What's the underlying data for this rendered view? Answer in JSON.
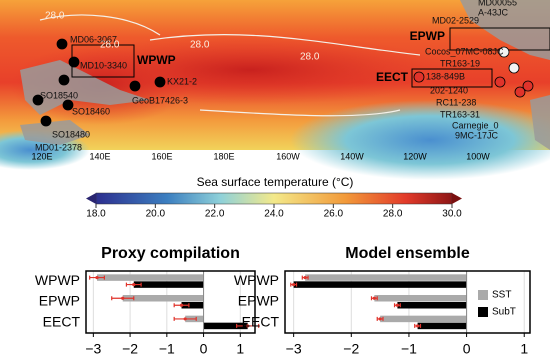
{
  "map": {
    "lon_labels": [
      "120E",
      "140E",
      "160E",
      "180E",
      "160W",
      "140W",
      "120W",
      "100W"
    ],
    "contour_labels": [
      "28.0",
      "28.0",
      "28.0",
      "28.0"
    ],
    "regions": [
      "WPWP",
      "EPWP",
      "EECT"
    ],
    "sites": [
      "MD06-3067",
      "MD10-3340",
      "KX21-2",
      "GeoB17426-3",
      "SO18540",
      "SO18460",
      "SO18480",
      "MD01-2378",
      "MD00055",
      "A-43JC",
      "MD02-2529",
      "Cocos_07MC-08JC",
      "TR163-19",
      "138-849B",
      "202-1240",
      "RC11-238",
      "TR163-31",
      "Carnegie_0",
      "9MC-17JC"
    ]
  },
  "colorbar": {
    "title": "Sea surface temperature (°C)",
    "lim": [
      18,
      30
    ],
    "ticks": [
      {
        "value": 18,
        "label": "18.0"
      },
      {
        "value": 20,
        "label": "20.0"
      },
      {
        "value": 22,
        "label": "22.0"
      },
      {
        "value": 24,
        "label": "24.0"
      },
      {
        "value": 26,
        "label": "26.0"
      },
      {
        "value": 28,
        "label": "28.0"
      },
      {
        "value": 30,
        "label": "30.0"
      }
    ]
  },
  "chart_data": [
    {
      "type": "hbar",
      "title": "Proxy compilation",
      "categories": [
        "WPWP",
        "EPWP",
        "EECT"
      ],
      "series": [
        {
          "name": "SST",
          "color": "#aaaaaa",
          "values": [
            -2.9,
            -2.2,
            -0.5
          ],
          "errors": [
            0.2,
            0.3,
            0.3
          ]
        },
        {
          "name": "SubT",
          "color": "#000000",
          "values": [
            -1.9,
            -0.6,
            1.2
          ],
          "errors": [
            0.2,
            0.2,
            0.3
          ]
        }
      ],
      "xlim": [
        -3.2,
        1.4
      ],
      "grid": true,
      "xticks": [
        {
          "value": -3,
          "label": "−3"
        },
        {
          "value": -2,
          "label": "−2"
        },
        {
          "value": -1,
          "label": "−1"
        },
        0,
        1
      ],
      "error_color": "#e0332b"
    },
    {
      "type": "hbar",
      "title": "Model ensemble",
      "categories": [
        "WPWP",
        "EPWP",
        "EECT"
      ],
      "series": [
        {
          "name": "SST",
          "color": "#aaaaaa",
          "values": [
            -2.8,
            -1.6,
            -1.5
          ],
          "errors": [
            0.05,
            0.05,
            0.05
          ]
        },
        {
          "name": "SubT",
          "color": "#000000",
          "values": [
            -3.0,
            -1.2,
            -0.85
          ],
          "errors": [
            0.05,
            0.05,
            0.05
          ]
        }
      ],
      "xlim": [
        -3.15,
        1.1
      ],
      "grid": true,
      "legend": "right",
      "xticks": [
        {
          "value": -3,
          "label": "−3"
        },
        {
          "value": -2,
          "label": "−2"
        },
        {
          "value": -1,
          "label": "−1"
        },
        0,
        1
      ],
      "error_color": "#e0332b"
    }
  ]
}
